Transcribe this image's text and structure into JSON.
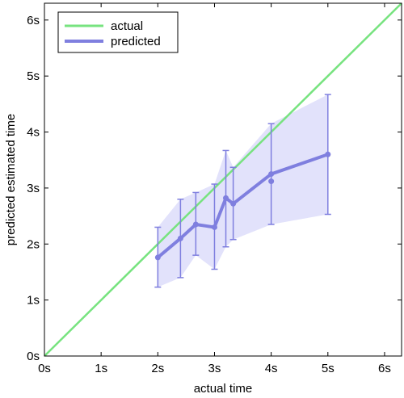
{
  "chart_data": {
    "type": "line",
    "xlabel": "actual time",
    "ylabel": "predicted estimated time",
    "xlim": [
      0,
      6.3
    ],
    "ylim": [
      0,
      6.3
    ],
    "xticks": [
      0,
      1,
      2,
      3,
      4,
      5,
      6
    ],
    "yticks": [
      0,
      1,
      2,
      3,
      4,
      5,
      6
    ],
    "xtick_labels": [
      "0s",
      "1s",
      "2s",
      "3s",
      "4s",
      "5s",
      "6s"
    ],
    "ytick_labels": [
      "0s",
      "1s",
      "2s",
      "3s",
      "4s",
      "5s",
      "6s"
    ],
    "grid": false,
    "legend_position": "top-left",
    "series": [
      {
        "name": "actual",
        "color": "#77e37f",
        "x": [
          0,
          6.3
        ],
        "y": [
          0,
          6.3
        ]
      },
      {
        "name": "predicted",
        "color": "#7f7fdf",
        "band_color": "#e2e2fb",
        "x": [
          2.0,
          2.4,
          2.67,
          3.0,
          3.2,
          3.33,
          4.0,
          5.0
        ],
        "y": [
          1.76,
          2.1,
          2.35,
          2.3,
          2.82,
          2.72,
          3.25,
          3.6
        ],
        "err_low": [
          1.23,
          1.4,
          1.8,
          1.55,
          1.95,
          2.08,
          2.35,
          2.53
        ],
        "err_high": [
          2.3,
          2.8,
          2.92,
          3.07,
          3.67,
          3.37,
          4.15,
          4.67
        ]
      }
    ],
    "extra_point": {
      "x": 4.0,
      "y": 3.12
    }
  }
}
